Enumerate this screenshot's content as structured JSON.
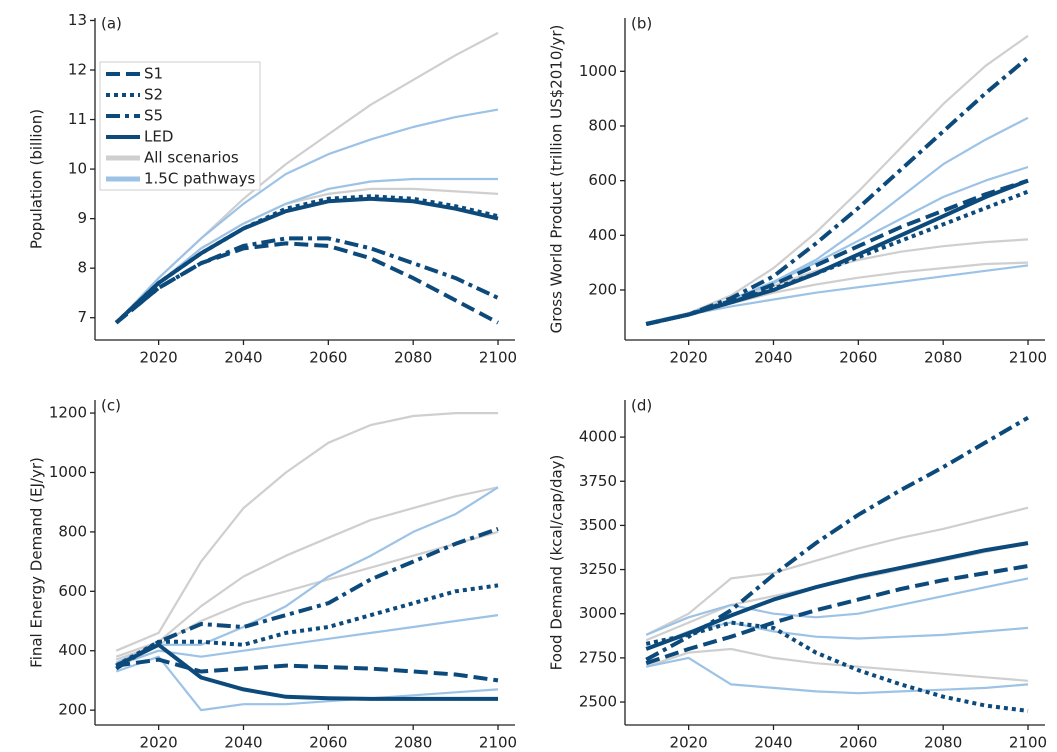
{
  "chart_data": [
    {
      "type": "line",
      "label": "(a)",
      "ylabel": "Population (billion)",
      "legend": "upper left",
      "x": [
        2010,
        2020,
        2030,
        2040,
        2050,
        2060,
        2070,
        2080,
        2090,
        2100
      ],
      "xlim": [
        2005,
        2104
      ],
      "xticks": [
        2020,
        2040,
        2060,
        2080,
        2100
      ],
      "ylim": [
        6.55,
        13.05
      ],
      "yticks": [
        7,
        8,
        9,
        10,
        11,
        12,
        13
      ],
      "series": [
        {
          "name": "S1",
          "color": "#0d4a7c",
          "style": "dashed",
          "values": [
            6.9,
            7.6,
            8.1,
            8.4,
            8.5,
            8.45,
            8.2,
            7.8,
            7.35,
            6.9
          ]
        },
        {
          "name": "S2",
          "color": "#0d4a7c",
          "style": "dotted",
          "values": [
            6.9,
            7.7,
            8.3,
            8.8,
            9.2,
            9.4,
            9.45,
            9.4,
            9.25,
            9.05
          ]
        },
        {
          "name": "S5",
          "color": "#0d4a7c",
          "style": "dashdot",
          "values": [
            6.9,
            7.6,
            8.1,
            8.45,
            8.6,
            8.6,
            8.4,
            8.1,
            7.8,
            7.4
          ]
        },
        {
          "name": "LED",
          "color": "#0d4a7c",
          "style": "solid",
          "values": [
            6.9,
            7.7,
            8.3,
            8.8,
            9.15,
            9.35,
            9.4,
            9.35,
            9.2,
            9.0
          ]
        },
        {
          "name": "All scenarios",
          "color": "#cfcfcf",
          "style": "ensemble",
          "values": [
            [
              6.9,
              7.8,
              8.6,
              9.4,
              10.1,
              10.7,
              11.3,
              11.8,
              12.3,
              12.75
            ],
            [
              6.9,
              7.7,
              8.4,
              8.9,
              9.3,
              9.5,
              9.6,
              9.6,
              9.55,
              9.5
            ]
          ]
        },
        {
          "name": "1.5C pathways",
          "color": "#9cc3e6",
          "style": "ensemble",
          "values": [
            [
              6.9,
              7.8,
              8.6,
              9.3,
              9.9,
              10.3,
              10.6,
              10.85,
              11.05,
              11.2
            ],
            [
              6.9,
              7.7,
              8.4,
              8.9,
              9.3,
              9.6,
              9.75,
              9.8,
              9.8,
              9.8
            ]
          ]
        }
      ]
    },
    {
      "type": "line",
      "label": "(b)",
      "ylabel": "Gross World Product (trillion US$2010/yr)",
      "x": [
        2010,
        2020,
        2030,
        2040,
        2050,
        2060,
        2070,
        2080,
        2090,
        2100
      ],
      "xlim": [
        2005,
        2104
      ],
      "xticks": [
        2020,
        2040,
        2060,
        2080,
        2100
      ],
      "ylim": [
        17,
        1195
      ],
      "yticks": [
        200,
        400,
        600,
        800,
        1000
      ],
      "series": [
        {
          "color": "#cfcfcf",
          "style": "ensemble",
          "values": [
            [
              75,
              115,
              180,
              280,
              410,
              560,
              720,
              880,
              1020,
              1130
            ],
            [
              75,
              110,
              150,
              190,
              220,
              245,
              265,
              280,
              295,
              300
            ],
            [
              75,
              112,
              160,
              215,
              270,
              310,
              340,
              360,
              375,
              385
            ]
          ]
        },
        {
          "color": "#9cc3e6",
          "style": "ensemble",
          "values": [
            [
              80,
              115,
              165,
              225,
              300,
              380,
              460,
              540,
              600,
              650
            ],
            [
              80,
              115,
              165,
              230,
              310,
              420,
              540,
              660,
              750,
              830
            ],
            [
              80,
              110,
              140,
              165,
              190,
              210,
              230,
              250,
              270,
              290
            ]
          ]
        },
        {
          "color": "#0d4a7c",
          "style": "dashed",
          "values": [
            75,
            110,
            160,
            220,
            290,
            360,
            430,
            490,
            550,
            600
          ]
        },
        {
          "color": "#0d4a7c",
          "style": "dotted",
          "values": [
            75,
            110,
            155,
            205,
            260,
            320,
            380,
            440,
            500,
            560
          ]
        },
        {
          "color": "#0d4a7c",
          "style": "dashdot",
          "values": [
            75,
            110,
            170,
            250,
            370,
            500,
            640,
            780,
            920,
            1050
          ]
        },
        {
          "color": "#0d4a7c",
          "style": "solid",
          "values": [
            75,
            110,
            155,
            200,
            260,
            330,
            400,
            470,
            540,
            600
          ]
        }
      ]
    },
    {
      "type": "line",
      "label": "(c)",
      "ylabel": "Final Energy Demand (EJ/yr)",
      "x": [
        2010,
        2020,
        2030,
        2040,
        2050,
        2060,
        2070,
        2080,
        2090,
        2100
      ],
      "xlim": [
        2005,
        2104
      ],
      "xticks": [
        2020,
        2040,
        2060,
        2080,
        2100
      ],
      "ylim": [
        150,
        1244
      ],
      "yticks": [
        200,
        400,
        600,
        800,
        1000,
        1200
      ],
      "series": [
        {
          "color": "#cfcfcf",
          "style": "ensemble",
          "values": [
            [
              400,
              460,
              700,
              880,
              1000,
              1100,
              1160,
              1190,
              1200,
              1200
            ],
            [
              380,
              430,
              550,
              650,
              720,
              780,
              840,
              880,
              920,
              950
            ],
            [
              370,
              420,
              500,
              560,
              600,
              640,
              680,
              720,
              760,
              800
            ]
          ]
        },
        {
          "color": "#9cc3e6",
          "style": "ensemble",
          "values": [
            [
              360,
              420,
              420,
              480,
              550,
              650,
              720,
              800,
              860,
              950
            ],
            [
              330,
              380,
              200,
              220,
              220,
              230,
              240,
              250,
              260,
              270
            ],
            [
              350,
              400,
              380,
              400,
              420,
              440,
              460,
              480,
              500,
              520
            ]
          ]
        },
        {
          "color": "#0d4a7c",
          "style": "dashed",
          "values": [
            350,
            370,
            330,
            340,
            350,
            345,
            340,
            330,
            320,
            300
          ]
        },
        {
          "color": "#0d4a7c",
          "style": "dotted",
          "values": [
            350,
            430,
            430,
            420,
            460,
            480,
            520,
            560,
            600,
            620
          ]
        },
        {
          "color": "#0d4a7c",
          "style": "dashdot",
          "values": [
            340,
            430,
            490,
            480,
            520,
            560,
            640,
            700,
            760,
            810
          ]
        },
        {
          "color": "#0d4a7c",
          "style": "solid",
          "values": [
            350,
            420,
            310,
            270,
            245,
            240,
            238,
            238,
            238,
            238
          ]
        }
      ]
    },
    {
      "type": "line",
      "label": "(d)",
      "ylabel": "Food Demand (kcal/cap/day)",
      "x": [
        2010,
        2020,
        2030,
        2040,
        2050,
        2060,
        2070,
        2080,
        2090,
        2100
      ],
      "xlim": [
        2005,
        2104
      ],
      "xticks": [
        2020,
        2040,
        2060,
        2080,
        2100
      ],
      "ylim": [
        2370,
        4210
      ],
      "yticks": [
        2500,
        2750,
        3000,
        3250,
        3500,
        3750,
        4000
      ],
      "series": [
        {
          "color": "#cfcfcf",
          "style": "ensemble",
          "values": [
            [
              2880,
              3000,
              3200,
              3230,
              3300,
              3370,
              3430,
              3480,
              3540,
              3600
            ],
            [
              2700,
              2780,
              2800,
              2750,
              2720,
              2700,
              2680,
              2660,
              2640,
              2620
            ],
            [
              2850,
              2950,
              3050,
              3100,
              3150,
              3200,
              3250,
              3300,
              3350,
              3400
            ]
          ]
        },
        {
          "color": "#9cc3e6",
          "style": "ensemble",
          "values": [
            [
              2880,
              2980,
              3050,
              3000,
              2980,
              3000,
              3050,
              3100,
              3150,
              3200
            ],
            [
              2700,
              2750,
              2600,
              2580,
              2560,
              2550,
              2560,
              2570,
              2580,
              2600
            ],
            [
              2800,
              2900,
              2950,
              2900,
              2870,
              2860,
              2870,
              2880,
              2900,
              2920
            ]
          ]
        },
        {
          "color": "#0d4a7c",
          "style": "dashed",
          "values": [
            2720,
            2800,
            2870,
            2950,
            3020,
            3080,
            3140,
            3190,
            3230,
            3270
          ]
        },
        {
          "color": "#0d4a7c",
          "style": "dotted",
          "values": [
            2830,
            2880,
            2950,
            2920,
            2780,
            2680,
            2600,
            2530,
            2480,
            2450
          ]
        },
        {
          "color": "#0d4a7c",
          "style": "dashdot",
          "values": [
            2740,
            2870,
            3020,
            3220,
            3400,
            3560,
            3700,
            3830,
            3970,
            4110
          ]
        },
        {
          "color": "#0d4a7c",
          "style": "solid",
          "values": [
            2800,
            2890,
            2990,
            3080,
            3150,
            3210,
            3260,
            3310,
            3360,
            3400
          ]
        }
      ]
    }
  ]
}
